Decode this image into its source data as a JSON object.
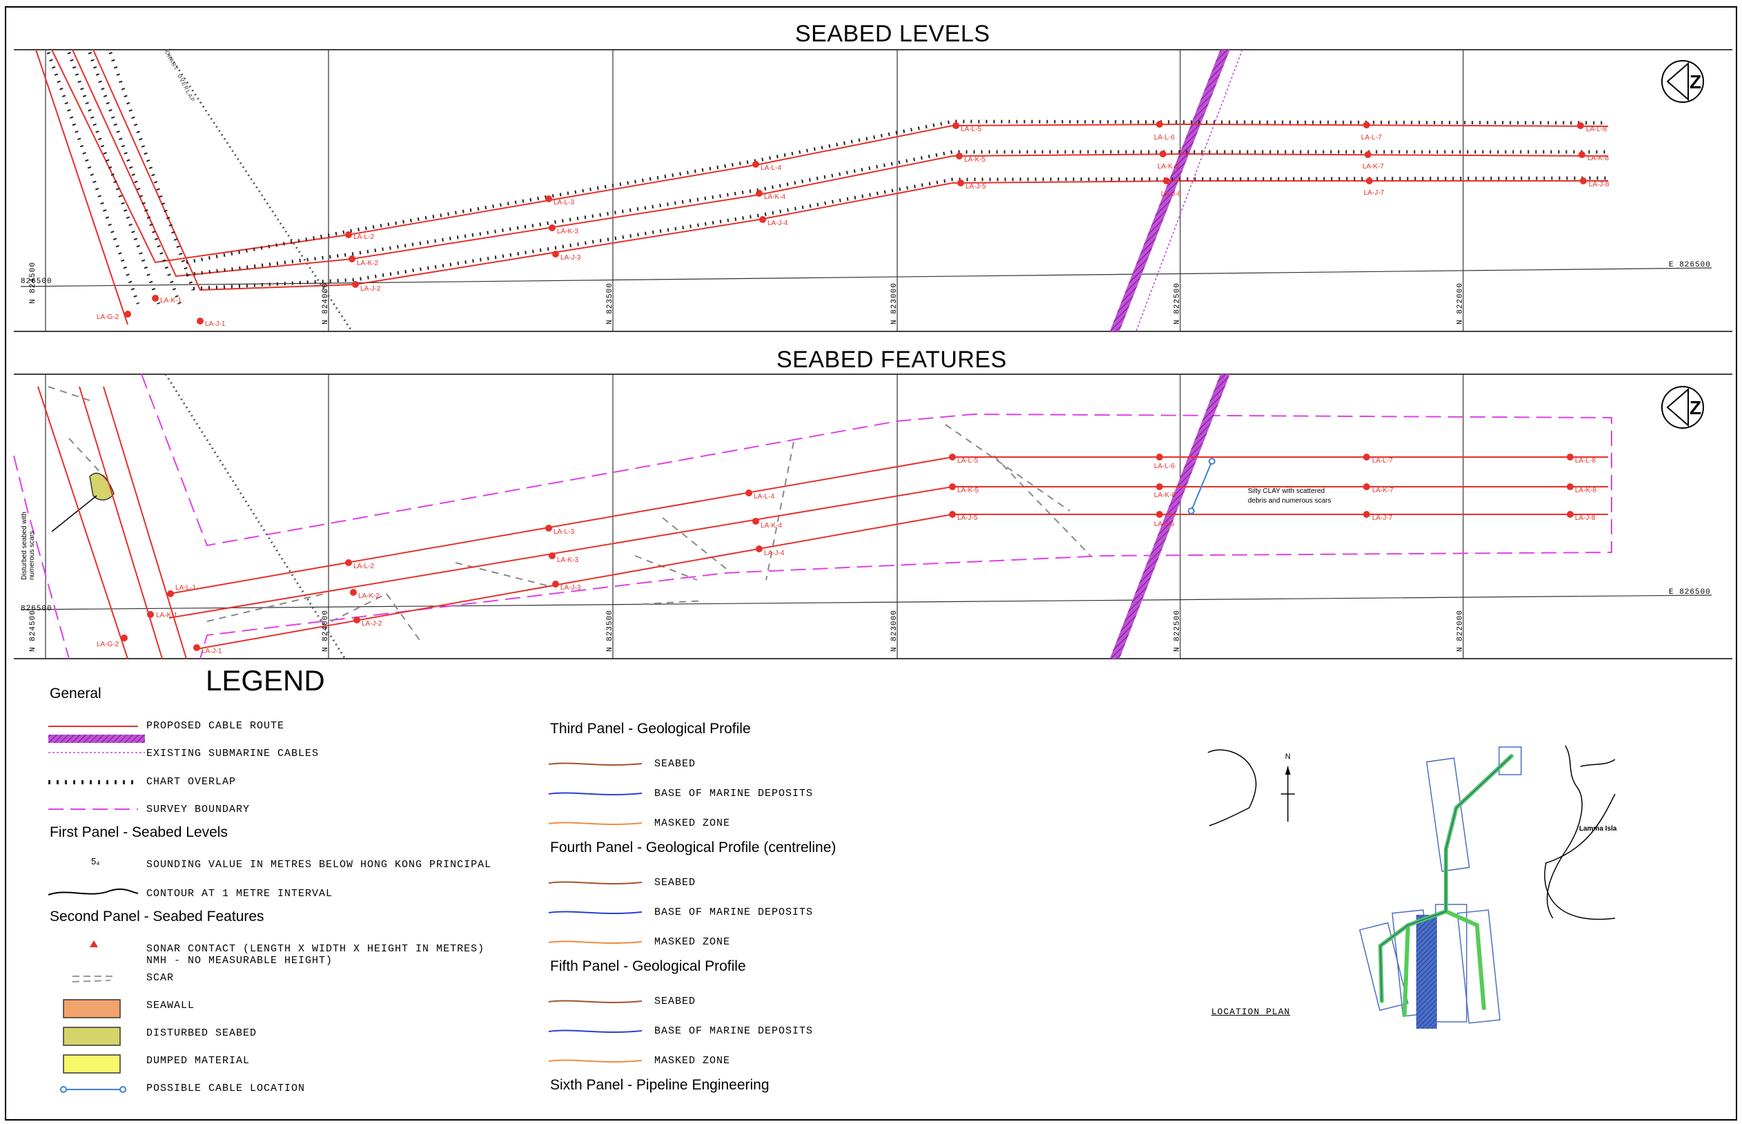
{
  "panel1": {
    "title": "SEABED LEVELS",
    "easting_label": "E 826500",
    "northing_label": "826500",
    "grid_labels": [
      "N 824500",
      "N 824000",
      "N 823500",
      "N 823000",
      "N 822500",
      "N 822000"
    ],
    "route_labels": [
      "LA-L-2",
      "LA-K-2",
      "LA-J-2",
      "LA-L-3",
      "LA-K-3",
      "LA-J-3",
      "LA-L-4",
      "LA-K-4",
      "LA-J-4",
      "LA-L-5",
      "LA-K-5",
      "LA-J-5",
      "LA-L-6",
      "LA-K-6",
      "LA-J-6",
      "LA-L-7",
      "LA-K-7",
      "LA-J-7",
      "LA-L-8",
      "LA-K-8",
      "LA-J-8",
      "LA-K-1",
      "LA-J-1",
      "LA-G-2"
    ],
    "overlap_label": "CHART OVERLAP"
  },
  "panel2": {
    "title": "SEABED FEATURES",
    "easting_label": "E 826500",
    "northing_label": "826500",
    "grid_labels": [
      "N 824500",
      "N 824000",
      "N 823500",
      "N 823000",
      "N 822500",
      "N 822000"
    ],
    "route_labels": [
      "LA-L-1",
      "LA-K-1",
      "LA-J-1",
      "LA-L-2",
      "LA-K-2",
      "LA-J-2",
      "LA-L-3",
      "LA-K-3",
      "LA-J-3",
      "LA-L-4",
      "LA-K-4",
      "LA-J-4",
      "LA-L-5",
      "LA-K-5",
      "LA-J-5",
      "LA-L-6",
      "LA-K-6",
      "LA-J-6",
      "LA-L-7",
      "LA-K-7",
      "LA-J-7",
      "LA-L-8",
      "LA-K-8",
      "LA-J-8",
      "LA-G-2"
    ],
    "note_line1": "Silty CLAY with scattered",
    "note_line2": "debris and numerous scars",
    "side_note": "Disturbed seabed with numerous scars"
  },
  "legend": {
    "title": "LEGEND",
    "general": {
      "heading": "General",
      "items": [
        "PROPOSED CABLE ROUTE",
        "EXISTING SUBMARINE CABLES",
        "CHART OVERLAP",
        "SURVEY BOUNDARY"
      ]
    },
    "first_panel": {
      "heading": "First Panel - Seabed Levels",
      "items": [
        "SOUNDING VALUE IN METRES BELOW HONG KONG PRINCIPAL",
        "CONTOUR AT 1 METRE INTERVAL"
      ],
      "sounding_symbol": "5₄"
    },
    "second_panel": {
      "heading": "Second Panel - Seabed Features",
      "items": [
        "SONAR CONTACT (LENGTH X WIDTH X HEIGHT IN METRES)",
        "NMH - NO MEASURABLE HEIGHT)",
        "SCAR",
        "SEAWALL",
        "DISTURBED SEABED",
        "DUMPED MATERIAL",
        "POSSIBLE CABLE LOCATION"
      ]
    },
    "third_panel": {
      "heading": "Third Panel - Geological Profile",
      "items": [
        "SEABED",
        "BASE OF MARINE DEPOSITS",
        "MASKED ZONE"
      ]
    },
    "fourth_panel": {
      "heading": "Fourth Panel - Geological Profile (centreline)",
      "items": [
        "SEABED",
        "BASE OF MARINE DEPOSITS",
        "MASKED ZONE"
      ]
    },
    "fifth_panel": {
      "heading": "Fifth Panel - Geological Profile",
      "items": [
        "SEABED",
        "BASE OF MARINE DEPOSITS",
        "MASKED ZONE"
      ]
    },
    "sixth_panel": {
      "heading": "Sixth Panel - Pipeline Engineering"
    }
  },
  "location_plan": {
    "label": "LOCATION PLAN",
    "island": "Lamma Isla",
    "north": "N"
  },
  "colors": {
    "cable_route": "#e8302a",
    "existing_cable": "#b040c8",
    "survey_boundary": "#e040e8",
    "seawall": "#f3a36c",
    "disturbed": "#d4d46a",
    "dumped": "#f8f86a",
    "possible_cable": "#3d7fd6",
    "seabed": "#a0522d",
    "base_marine": "#2a3fd6",
    "masked": "#f08c3c"
  },
  "icons": [
    "north-arrow-icon",
    "north-arrow-icon"
  ]
}
